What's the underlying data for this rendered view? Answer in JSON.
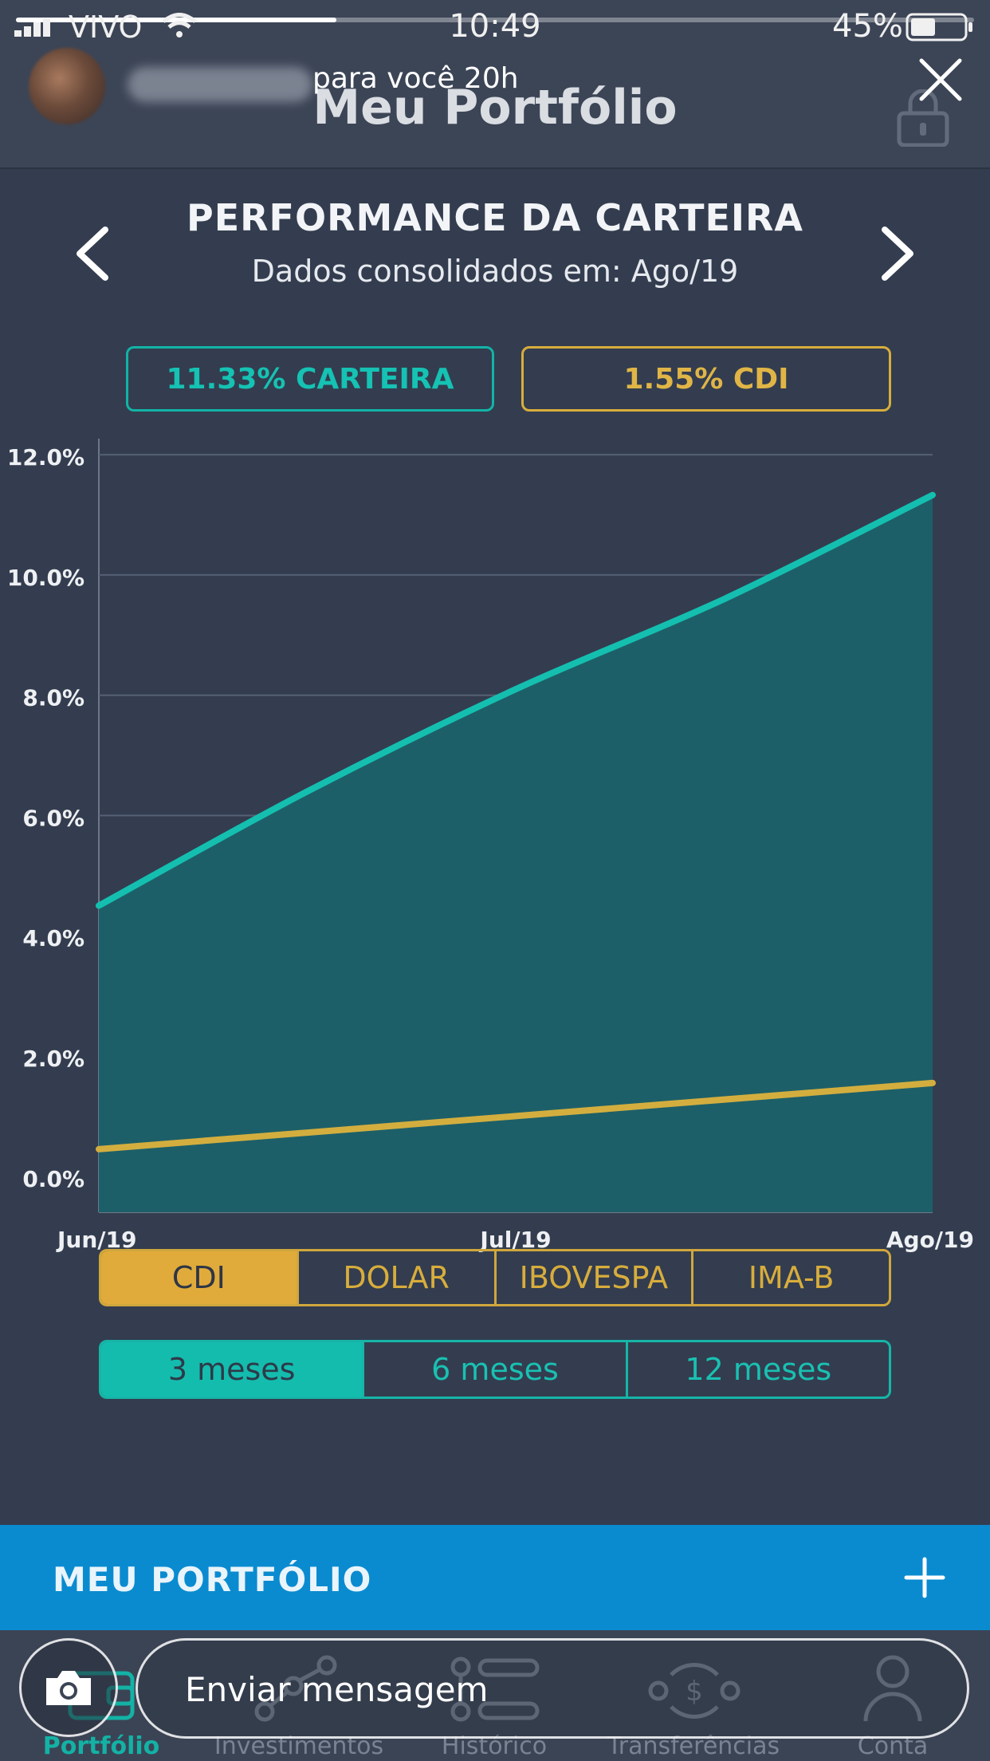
{
  "story": {
    "carrier": "VIVO",
    "time": "10:49",
    "battery": "45%",
    "meta": "para você  20h",
    "reply_placeholder": "Enviar mensagem"
  },
  "header": {
    "title": "Meu Portfólio"
  },
  "performance": {
    "title": "PERFORMANCE DA CARTEIRA",
    "subtitle": "Dados consolidados em:  Ago/19",
    "badge_carteira": "11.33% CARTEIRA",
    "badge_cdi": "1.55% CDI"
  },
  "chart_data": {
    "type": "area",
    "x": [
      "Jun/19",
      "Jul/19",
      "Ago/19"
    ],
    "y_ticks": [
      "12.0%",
      "10.0%",
      "8.0%",
      "6.0%",
      "4.0%",
      "2.0%",
      "0.0%"
    ],
    "ylim": [
      -0.6,
      12.4
    ],
    "grid": true,
    "series": [
      {
        "name": "CARTEIRA",
        "color": "#14bfb0",
        "fill": "#1d5f68",
        "points": [
          [
            0,
            4.5
          ],
          [
            0.5,
            6.4
          ],
          [
            1.0,
            8.1
          ],
          [
            1.5,
            9.6
          ],
          [
            2.0,
            11.33
          ]
        ]
      },
      {
        "name": "CDI",
        "color": "#d3ae3e",
        "points": [
          [
            0,
            0.45
          ],
          [
            1.0,
            1.0
          ],
          [
            2.0,
            1.55
          ]
        ]
      }
    ]
  },
  "benchmarks": {
    "selected": 0,
    "options": [
      "CDI",
      "DOLAR",
      "IBOVESPA",
      "IMA-B"
    ]
  },
  "periods": {
    "selected": 0,
    "options": [
      "3 meses",
      "6 meses",
      "12 meses"
    ]
  },
  "portfolio_bar": {
    "label": "MEU PORTFÓLIO"
  },
  "nav": {
    "items": [
      "Portfólio",
      "Investimentos",
      "Histórico",
      "Transferências",
      "Conta"
    ],
    "active_color": "#13b2a5"
  }
}
